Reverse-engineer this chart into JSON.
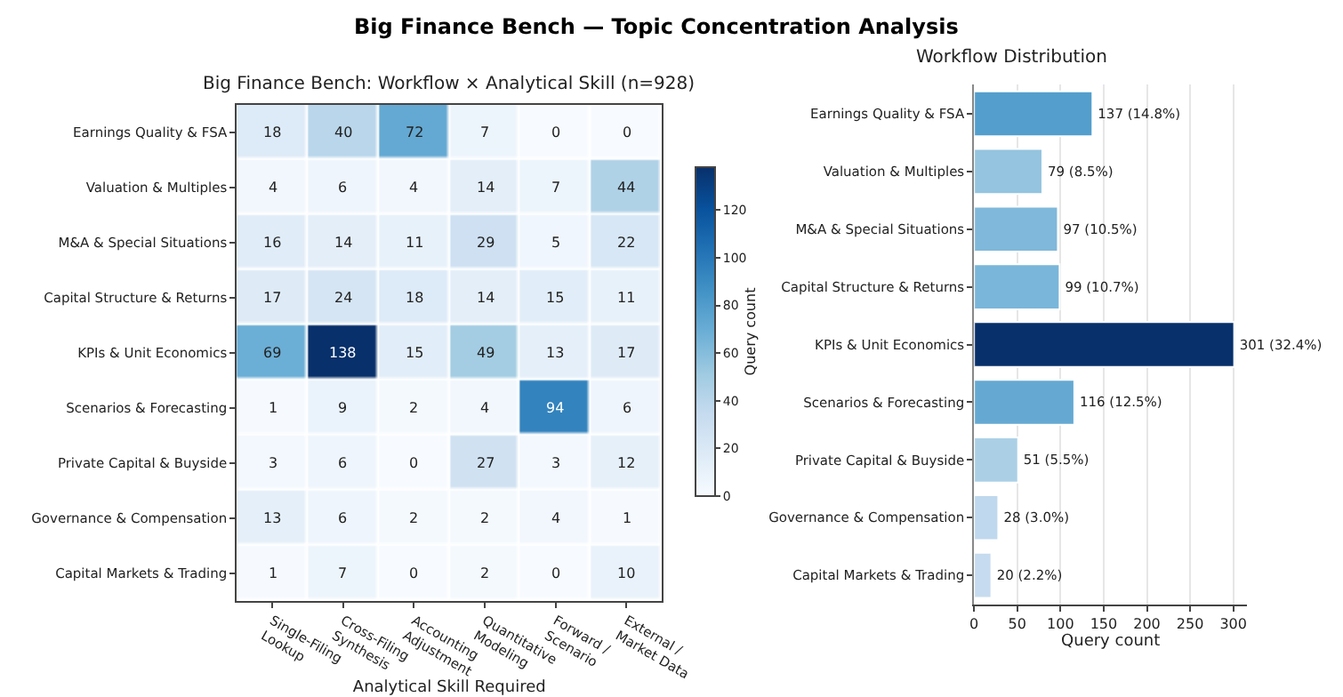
{
  "chart_data": [
    {
      "type": "heatmap",
      "title": "Big Finance Bench — Topic Concentration Analysis",
      "subtitle": "Big Finance Bench: Workflow × Analytical Skill (n=928)",
      "xlabel": "Analytical Skill Required",
      "clabel": "Query count",
      "categories": [
        "Single-Filing\nLookup",
        "Cross-Filing\nSynthesis",
        "Accounting\nAdjustment",
        "Quantitative\nModeling",
        "Forward /\nScenario",
        "External /\nMarket Data"
      ],
      "y_categories": [
        "Earnings Quality & FSA",
        "Valuation & Multiples",
        "M&A & Special Situations",
        "Capital Structure & Returns",
        "KPIs & Unit Economics",
        "Scenarios & Forecasting",
        "Private Capital & Buyside",
        "Governance & Compensation",
        "Capital Markets & Trading"
      ],
      "cells": [
        [
          18,
          40,
          72,
          7,
          0,
          0
        ],
        [
          4,
          6,
          4,
          14,
          7,
          44
        ],
        [
          16,
          14,
          11,
          29,
          5,
          22
        ],
        [
          17,
          24,
          18,
          14,
          15,
          11
        ],
        [
          69,
          138,
          15,
          49,
          13,
          17
        ],
        [
          1,
          9,
          2,
          4,
          94,
          6
        ],
        [
          3,
          6,
          0,
          27,
          3,
          12
        ],
        [
          13,
          6,
          2,
          2,
          4,
          1
        ],
        [
          1,
          7,
          0,
          2,
          0,
          10
        ]
      ],
      "data_labels": true,
      "clim": [
        0,
        138
      ],
      "cticks": [
        0,
        20,
        40,
        60,
        80,
        100,
        120
      ]
    },
    {
      "type": "bar",
      "orientation": "horizontal",
      "title": "Workflow Distribution",
      "xlabel": "Query count",
      "categories": [
        "Earnings Quality & FSA",
        "Valuation & Multiples",
        "M&A & Special Situations",
        "Capital Structure & Returns",
        "KPIs & Unit Economics",
        "Scenarios & Forecasting",
        "Private Capital & Buyside",
        "Governance & Compensation",
        "Capital Markets & Trading"
      ],
      "values": [
        137,
        79,
        97,
        99,
        301,
        116,
        51,
        28,
        20
      ],
      "colors": [
        "#539ecd",
        "#94c4df",
        "#7fb8da",
        "#7ab6d9",
        "#08306b",
        "#65a9d3",
        "#abd0e6",
        "#bfd8ed",
        "#c6dbef"
      ],
      "value_labels": [
        "137 (14.8%)",
        "79 (8.5%)",
        "97 (10.5%)",
        "99 (10.7%)",
        "301 (32.4%)",
        "116 (12.5%)",
        "51 (5.5%)",
        "28 (3.0%)",
        "20 (2.2%)"
      ],
      "xlim": [
        0,
        316
      ],
      "xticks": [
        0,
        50,
        100,
        150,
        200,
        250,
        300
      ],
      "grid": "x"
    }
  ]
}
